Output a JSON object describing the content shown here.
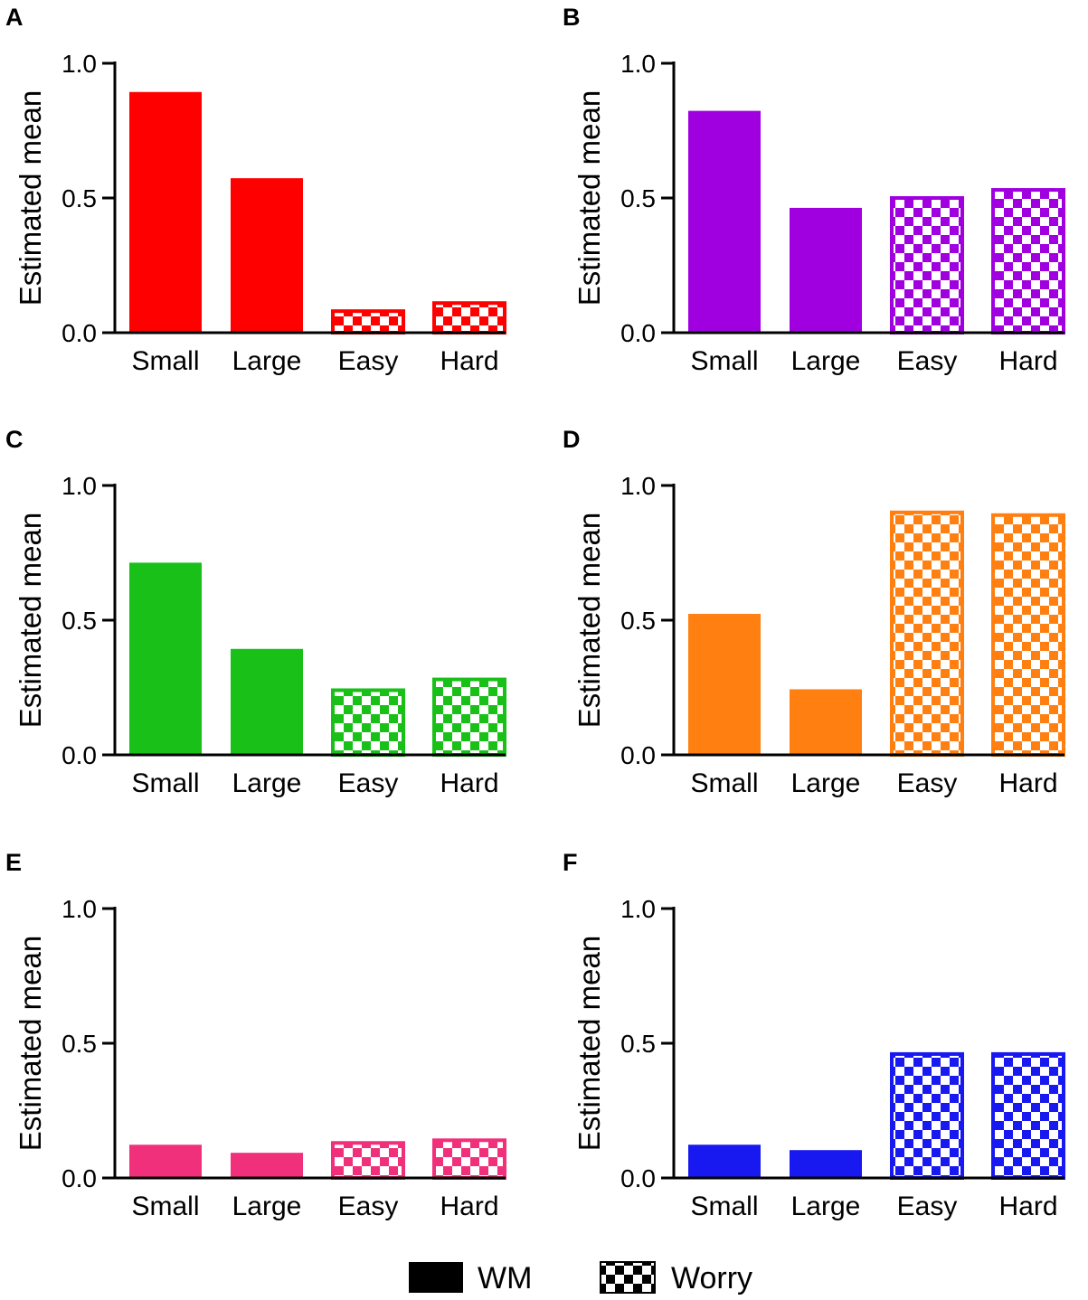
{
  "figure": {
    "legend": [
      {
        "name": "WM",
        "style": "solid"
      },
      {
        "name": "Worry",
        "style": "checker"
      }
    ]
  },
  "chart_data": [
    {
      "panel": "A",
      "type": "bar",
      "color": "#ff0000",
      "ylabel": "Estimated mean",
      "ylim": [
        0,
        1.0
      ],
      "yticks": [
        "0.0",
        "0.5",
        "1.0"
      ],
      "categories": [
        "Small",
        "Large",
        "Easy",
        "Hard"
      ],
      "values": [
        0.89,
        0.57,
        0.08,
        0.11
      ],
      "series_type": [
        "WM",
        "WM",
        "Worry",
        "Worry"
      ]
    },
    {
      "panel": "B",
      "type": "bar",
      "color": "#a000e0",
      "ylabel": "Estimated mean",
      "ylim": [
        0,
        1.0
      ],
      "yticks": [
        "0.0",
        "0.5",
        "1.0"
      ],
      "categories": [
        "Small",
        "Large",
        "Easy",
        "Hard"
      ],
      "values": [
        0.82,
        0.46,
        0.5,
        0.53
      ],
      "series_type": [
        "WM",
        "WM",
        "Worry",
        "Worry"
      ]
    },
    {
      "panel": "C",
      "type": "bar",
      "color": "#18c018",
      "ylabel": "Estimated mean",
      "ylim": [
        0,
        1.0
      ],
      "yticks": [
        "0.0",
        "0.5",
        "1.0"
      ],
      "categories": [
        "Small",
        "Large",
        "Easy",
        "Hard"
      ],
      "values": [
        0.71,
        0.39,
        0.24,
        0.28
      ],
      "series_type": [
        "WM",
        "WM",
        "Worry",
        "Worry"
      ]
    },
    {
      "panel": "D",
      "type": "bar",
      "color": "#ff7f10",
      "ylabel": "Estimated mean",
      "ylim": [
        0,
        1.0
      ],
      "yticks": [
        "0.0",
        "0.5",
        "1.0"
      ],
      "categories": [
        "Small",
        "Large",
        "Easy",
        "Hard"
      ],
      "values": [
        0.52,
        0.24,
        0.9,
        0.89
      ],
      "series_type": [
        "WM",
        "WM",
        "Worry",
        "Worry"
      ]
    },
    {
      "panel": "E",
      "type": "bar",
      "color": "#f0307a",
      "ylabel": "Estimated mean",
      "ylim": [
        0,
        1.0
      ],
      "yticks": [
        "0.0",
        "0.5",
        "1.0"
      ],
      "categories": [
        "Small",
        "Large",
        "Easy",
        "Hard"
      ],
      "values": [
        0.12,
        0.09,
        0.13,
        0.14
      ],
      "series_type": [
        "WM",
        "WM",
        "Worry",
        "Worry"
      ]
    },
    {
      "panel": "F",
      "type": "bar",
      "color": "#1818f0",
      "ylabel": "Estimated mean",
      "ylim": [
        0,
        1.0
      ],
      "yticks": [
        "0.0",
        "0.5",
        "1.0"
      ],
      "categories": [
        "Small",
        "Large",
        "Easy",
        "Hard"
      ],
      "values": [
        0.12,
        0.1,
        0.46,
        0.46
      ],
      "series_type": [
        "WM",
        "WM",
        "Worry",
        "Worry"
      ]
    }
  ]
}
